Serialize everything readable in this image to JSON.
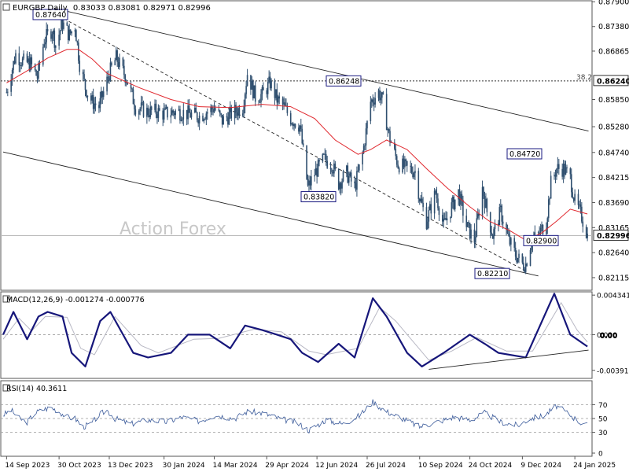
{
  "chart_data": [
    {
      "type": "candlestick",
      "symbol": "EURGBP",
      "timeframe": "Daily",
      "ohlc_label": "0.83033 0.83081 0.82971 0.82996",
      "last_price_label": "0.82996",
      "last_price": 0.82996,
      "watermark": "Action Forex",
      "ylim": [
        0.8185,
        0.8792
      ],
      "y_ticks": [
        {
          "value": 0.879,
          "label": "0.87900"
        },
        {
          "value": 0.8738,
          "label": "0.87380"
        },
        {
          "value": 0.86865,
          "label": "0.86865"
        },
        {
          "value": 0.8585,
          "label": "0.85850"
        },
        {
          "value": 0.8528,
          "label": "0.85280"
        },
        {
          "value": 0.8474,
          "label": "0.84740"
        },
        {
          "value": 0.84215,
          "label": "0.84215"
        },
        {
          "value": 0.8369,
          "label": "0.83690"
        },
        {
          "value": 0.83165,
          "label": "0.83165"
        },
        {
          "value": 0.8264,
          "label": "0.82640"
        },
        {
          "value": 0.82115,
          "label": "0.82115"
        }
      ],
      "fib_level": {
        "label": "38.2",
        "value_label": "0.86240",
        "value": 0.8624
      },
      "price_annotations": [
        {
          "label": "0.87640",
          "value": 0.8764,
          "date": "2023-10-26"
        },
        {
          "label": "0.86248",
          "value": 0.86248,
          "date": "2024-07-31"
        },
        {
          "label": "0.83820",
          "value": 0.8382,
          "date": "2024-06-04"
        },
        {
          "label": "0.84720",
          "value": 0.8472,
          "date": "2025-01-03"
        },
        {
          "label": "0.82900",
          "value": 0.829,
          "date": "2024-12-26"
        },
        {
          "label": "0.82210",
          "value": 0.8221,
          "date": "2024-12-12"
        }
      ],
      "close_path": [
        [
          "2023-09-14",
          0.86
        ],
        [
          "2023-09-22",
          0.868
        ],
        [
          "2023-09-28",
          0.8665
        ],
        [
          "2023-10-05",
          0.866
        ],
        [
          "2023-10-11",
          0.8632
        ],
        [
          "2023-10-17",
          0.871
        ],
        [
          "2023-10-24",
          0.8732
        ],
        [
          "2023-10-27",
          0.87
        ],
        [
          "2023-11-02",
          0.8745
        ],
        [
          "2023-11-08",
          0.872
        ],
        [
          "2023-11-13",
          0.874
        ],
        [
          "2023-11-17",
          0.866
        ],
        [
          "2023-11-22",
          0.861
        ],
        [
          "2023-11-28",
          0.858
        ],
        [
          "2023-12-04",
          0.857
        ],
        [
          "2023-12-08",
          0.86
        ],
        [
          "2023-12-13",
          0.864
        ],
        [
          "2023-12-19",
          0.8672
        ],
        [
          "2023-12-28",
          0.863
        ],
        [
          "2024-01-05",
          0.857
        ],
        [
          "2024-01-15",
          0.856
        ],
        [
          "2024-01-23",
          0.856
        ],
        [
          "2024-01-30",
          0.8555
        ],
        [
          "2024-02-10",
          0.856
        ],
        [
          "2024-02-20",
          0.8555
        ],
        [
          "2024-03-01",
          0.855
        ],
        [
          "2024-03-08",
          0.856
        ],
        [
          "2024-03-14",
          0.8568
        ],
        [
          "2024-03-21",
          0.854
        ],
        [
          "2024-03-29",
          0.8555
        ],
        [
          "2024-04-08",
          0.857
        ],
        [
          "2024-04-12",
          0.864
        ],
        [
          "2024-04-19",
          0.859
        ],
        [
          "2024-04-25",
          0.8595
        ],
        [
          "2024-05-02",
          0.862
        ],
        [
          "2024-05-08",
          0.8585
        ],
        [
          "2024-05-14",
          0.857
        ],
        [
          "2024-05-20",
          0.8545
        ],
        [
          "2024-05-28",
          0.853
        ],
        [
          "2024-06-04",
          0.84
        ],
        [
          "2024-06-10",
          0.843
        ],
        [
          "2024-06-18",
          0.846
        ],
        [
          "2024-06-25",
          0.845
        ],
        [
          "2024-07-01",
          0.841
        ],
        [
          "2024-07-08",
          0.843
        ],
        [
          "2024-07-15",
          0.84
        ],
        [
          "2024-07-22",
          0.847
        ],
        [
          "2024-07-29",
          0.858
        ],
        [
          "2024-08-05",
          0.86
        ],
        [
          "2024-08-09",
          0.858
        ],
        [
          "2024-08-14",
          0.851
        ],
        [
          "2024-08-22",
          0.845
        ],
        [
          "2024-08-30",
          0.844
        ],
        [
          "2024-09-06",
          0.8435
        ],
        [
          "2024-09-10",
          0.838
        ],
        [
          "2024-09-16",
          0.833
        ],
        [
          "2024-09-24",
          0.839
        ],
        [
          "2024-10-01",
          0.832
        ],
        [
          "2024-10-08",
          0.836
        ],
        [
          "2024-10-14",
          0.839
        ],
        [
          "2024-10-21",
          0.832
        ],
        [
          "2024-10-28",
          0.829
        ],
        [
          "2024-11-04",
          0.84
        ],
        [
          "2024-11-08",
          0.835
        ],
        [
          "2024-11-13",
          0.83
        ],
        [
          "2024-11-20",
          0.835
        ],
        [
          "2024-11-27",
          0.829
        ],
        [
          "2024-12-03",
          0.826
        ],
        [
          "2024-12-09",
          0.824
        ],
        [
          "2024-12-12",
          0.824
        ],
        [
          "2024-12-17",
          0.829
        ],
        [
          "2024-12-23",
          0.83
        ],
        [
          "2024-12-30",
          0.833
        ],
        [
          "2025-01-03",
          0.841
        ],
        [
          "2025-01-08",
          0.844
        ],
        [
          "2025-01-14",
          0.844
        ],
        [
          "2025-01-20",
          0.842
        ],
        [
          "2025-01-24",
          0.837
        ],
        [
          "2025-01-30",
          0.834
        ],
        [
          "2025-02-04",
          0.83
        ]
      ],
      "moving_average": [
        [
          "2023-09-14",
          0.862
        ],
        [
          "2023-10-02",
          0.8645
        ],
        [
          "2023-10-20",
          0.8672
        ],
        [
          "2023-11-06",
          0.869
        ],
        [
          "2023-11-16",
          0.869
        ],
        [
          "2023-11-28",
          0.867
        ],
        [
          "2023-12-11",
          0.864
        ],
        [
          "2024-01-08",
          0.861
        ],
        [
          "2024-02-05",
          0.8585
        ],
        [
          "2024-03-01",
          0.857
        ],
        [
          "2024-03-28",
          0.8568
        ],
        [
          "2024-04-25",
          0.8575
        ],
        [
          "2024-05-20",
          0.857
        ],
        [
          "2024-06-10",
          0.8545
        ],
        [
          "2024-06-28",
          0.85
        ],
        [
          "2024-07-18",
          0.847
        ],
        [
          "2024-07-29",
          0.848
        ],
        [
          "2024-08-12",
          0.85
        ],
        [
          "2024-08-30",
          0.848
        ],
        [
          "2024-09-16",
          0.844
        ],
        [
          "2024-10-04",
          0.84
        ],
        [
          "2024-10-24",
          0.836
        ],
        [
          "2024-11-10",
          0.833
        ],
        [
          "2024-11-28",
          0.831
        ],
        [
          "2024-12-12",
          0.829
        ],
        [
          "2024-12-26",
          0.8305
        ],
        [
          "2025-01-08",
          0.833
        ],
        [
          "2025-01-20",
          0.8355
        ],
        [
          "2025-02-04",
          0.8345
        ]
      ],
      "trendlines": [
        {
          "style": "solid",
          "from": [
            "2023-10-26",
            0.8776
          ],
          "to": [
            "2025-02-05",
            0.8519
          ]
        },
        {
          "style": "solid",
          "from": [
            "2023-09-11",
            0.8475
          ],
          "to": [
            "2024-12-23",
            0.8215
          ]
        },
        {
          "style": "dashed",
          "from": [
            "2023-10-30",
            0.876
          ],
          "to": [
            "2024-12-12",
            0.8225
          ]
        }
      ]
    },
    {
      "type": "line",
      "name": "MACD",
      "legend": "MACD(12,26,9) -0.001274 -0.000776",
      "ylim": [
        -0.0048,
        0.0047
      ],
      "y_ticks": [
        {
          "value": 0.004341,
          "label": "0.004341"
        },
        {
          "value": 0.0,
          "label": "0.00"
        },
        {
          "value": -0.003916,
          "label": "-0.003916"
        }
      ],
      "current_labels": [
        "0.00",
        "0.00"
      ],
      "macd": [
        [
          "2023-09-11",
          0.0
        ],
        [
          "2023-09-20",
          0.0025
        ],
        [
          "2023-10-02",
          -0.0005
        ],
        [
          "2023-10-12",
          0.002
        ],
        [
          "2023-10-20",
          0.0025
        ],
        [
          "2023-11-02",
          0.002
        ],
        [
          "2023-11-10",
          -0.002
        ],
        [
          "2023-11-22",
          -0.0035
        ],
        [
          "2023-12-05",
          0.0015
        ],
        [
          "2023-12-14",
          0.0025
        ],
        [
          "2024-01-03",
          -0.002
        ],
        [
          "2024-01-16",
          -0.0025
        ],
        [
          "2024-02-05",
          -0.002
        ],
        [
          "2024-02-20",
          0.0
        ],
        [
          "2024-03-10",
          0.0
        ],
        [
          "2024-03-28",
          -0.0015
        ],
        [
          "2024-04-10",
          0.001
        ],
        [
          "2024-04-25",
          0.0005
        ],
        [
          "2024-05-08",
          0.0
        ],
        [
          "2024-05-20",
          -0.0005
        ],
        [
          "2024-05-30",
          -0.002
        ],
        [
          "2024-06-13",
          -0.003
        ],
        [
          "2024-07-01",
          -0.001
        ],
        [
          "2024-07-15",
          -0.0025
        ],
        [
          "2024-07-31",
          0.004
        ],
        [
          "2024-08-12",
          0.002
        ],
        [
          "2024-08-30",
          -0.002
        ],
        [
          "2024-09-12",
          -0.0035
        ],
        [
          "2024-10-01",
          -0.002
        ],
        [
          "2024-10-24",
          0.0
        ],
        [
          "2024-11-06",
          -0.001
        ],
        [
          "2024-11-18",
          -0.002
        ],
        [
          "2024-12-12",
          -0.0025
        ],
        [
          "2025-01-06",
          0.0045
        ],
        [
          "2025-01-20",
          0.0
        ],
        [
          "2025-02-04",
          -0.0013
        ]
      ],
      "signal": [
        [
          "2023-09-11",
          -0.0005
        ],
        [
          "2023-09-25",
          0.0018
        ],
        [
          "2023-10-06",
          0.0004
        ],
        [
          "2023-10-18",
          0.002
        ],
        [
          "2023-11-06",
          0.0019
        ],
        [
          "2023-11-18",
          -0.0015
        ],
        [
          "2023-11-30",
          -0.0022
        ],
        [
          "2023-12-18",
          0.002
        ],
        [
          "2024-01-10",
          -0.0012
        ],
        [
          "2024-01-25",
          -0.002
        ],
        [
          "2024-02-25",
          -0.0005
        ],
        [
          "2024-03-18",
          -0.0004
        ],
        [
          "2024-04-18",
          0.0006
        ],
        [
          "2024-05-12",
          0.0003
        ],
        [
          "2024-06-05",
          -0.0018
        ],
        [
          "2024-06-20",
          -0.0022
        ],
        [
          "2024-07-18",
          -0.0015
        ],
        [
          "2024-08-06",
          0.003
        ],
        [
          "2024-08-20",
          0.0015
        ],
        [
          "2024-09-18",
          -0.0028
        ],
        [
          "2024-10-08",
          -0.0018
        ],
        [
          "2024-10-30",
          -0.0003
        ],
        [
          "2024-11-25",
          -0.0018
        ],
        [
          "2024-12-18",
          -0.0018
        ],
        [
          "2025-01-12",
          0.0035
        ],
        [
          "2025-01-26",
          0.0005
        ],
        [
          "2025-02-04",
          -0.0008
        ]
      ],
      "trendline": {
        "from": [
          "2024-09-18",
          -0.0038
        ],
        "to": [
          "2025-02-05",
          -0.0017
        ]
      }
    },
    {
      "type": "line",
      "name": "RSI",
      "legend": "RSI(14) 40.3611",
      "ylim": [
        0,
        100
      ],
      "y_ticks": [
        {
          "value": 70,
          "label": "70"
        },
        {
          "value": 50,
          "label": "50"
        },
        {
          "value": 30,
          "label": "30"
        },
        {
          "value": 0,
          "label": "0"
        }
      ],
      "values": [
        [
          "2023-09-11",
          55
        ],
        [
          "2023-09-18",
          62
        ],
        [
          "2023-09-25",
          50
        ],
        [
          "2023-10-02",
          45
        ],
        [
          "2023-10-09",
          58
        ],
        [
          "2023-10-16",
          63
        ],
        [
          "2023-10-23",
          66
        ],
        [
          "2023-10-30",
          60
        ],
        [
          "2023-11-06",
          52
        ],
        [
          "2023-11-13",
          50
        ],
        [
          "2023-11-20",
          38
        ],
        [
          "2023-11-27",
          42
        ],
        [
          "2023-12-04",
          55
        ],
        [
          "2023-12-11",
          62
        ],
        [
          "2023-12-18",
          50
        ],
        [
          "2024-01-01",
          42
        ],
        [
          "2024-01-15",
          48
        ],
        [
          "2024-02-01",
          45
        ],
        [
          "2024-02-15",
          52
        ],
        [
          "2024-03-01",
          46
        ],
        [
          "2024-03-15",
          55
        ],
        [
          "2024-04-01",
          50
        ],
        [
          "2024-04-12",
          60
        ],
        [
          "2024-04-25",
          58
        ],
        [
          "2024-05-10",
          50
        ],
        [
          "2024-05-25",
          44
        ],
        [
          "2024-06-05",
          33
        ],
        [
          "2024-06-20",
          48
        ],
        [
          "2024-07-05",
          42
        ],
        [
          "2024-07-20",
          55
        ],
        [
          "2024-07-31",
          74
        ],
        [
          "2024-08-12",
          60
        ],
        [
          "2024-08-26",
          50
        ],
        [
          "2024-09-10",
          38
        ],
        [
          "2024-09-25",
          45
        ],
        [
          "2024-10-10",
          52
        ],
        [
          "2024-10-25",
          48
        ],
        [
          "2024-11-06",
          58
        ],
        [
          "2024-11-20",
          45
        ],
        [
          "2024-12-05",
          40
        ],
        [
          "2024-12-16",
          50
        ],
        [
          "2024-12-28",
          54
        ],
        [
          "2025-01-08",
          68
        ],
        [
          "2025-01-20",
          55
        ],
        [
          "2025-01-28",
          45
        ],
        [
          "2025-02-04",
          40
        ]
      ]
    }
  ],
  "x_axis": {
    "start": "2023-09-14",
    "ticks": [
      {
        "date": "2023-09-14",
        "label": "14 Sep 2023"
      },
      {
        "date": "2023-10-30",
        "label": "30 Oct 2023"
      },
      {
        "date": "2023-12-13",
        "label": "13 Dec 2023"
      },
      {
        "date": "2024-01-30",
        "label": "30 Jan 2024"
      },
      {
        "date": "2024-03-14",
        "label": "14 Mar 2024"
      },
      {
        "date": "2024-04-29",
        "label": "29 Apr 2024"
      },
      {
        "date": "2024-06-12",
        "label": "12 Jun 2024"
      },
      {
        "date": "2024-07-26",
        "label": "26 Jul 2024"
      },
      {
        "date": "2024-09-10",
        "label": "10 Sep 2024"
      },
      {
        "date": "2024-10-24",
        "label": "24 Oct 2024"
      },
      {
        "date": "2024-12-09",
        "label": "9 Dec 2024"
      },
      {
        "date": "2025-01-24",
        "label": "24 Jan 2025"
      }
    ]
  },
  "colors": {
    "candle": "#2f4f6f",
    "moving_average": "#e0282e",
    "macd": "#16167a",
    "signal": "#b8b8c4",
    "rsi": "#3a5a9a",
    "label_border": "#1a1a80",
    "trendline": "#222222",
    "grid": "#9a9a9a"
  }
}
